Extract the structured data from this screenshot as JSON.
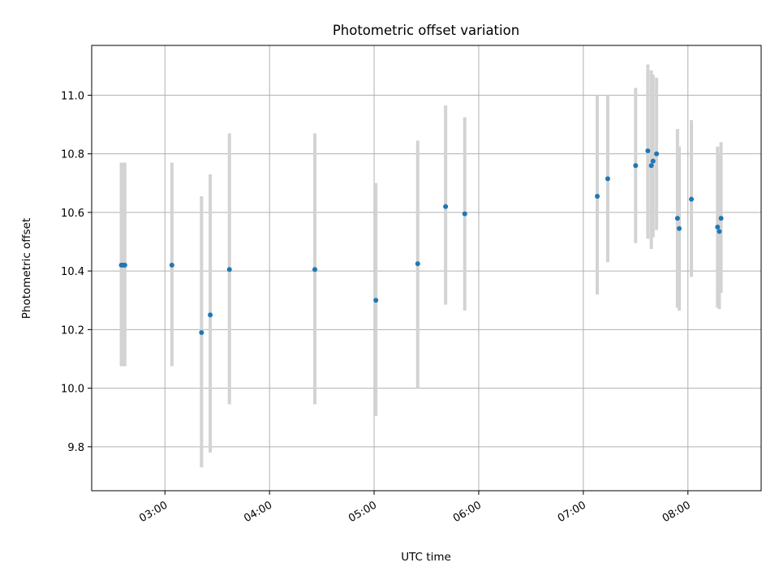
{
  "chart_data": {
    "type": "scatter",
    "title": "Photometric offset variation",
    "xlabel": "UTC time",
    "ylabel": "Photometric offset",
    "x_unit": "UTC time of day",
    "xlim": [
      "02:18",
      "08:42"
    ],
    "ylim": [
      9.65,
      11.17
    ],
    "grid": true,
    "legend": "none",
    "x_ticks": [
      "03:00",
      "04:00",
      "05:00",
      "06:00",
      "07:00",
      "08:00"
    ],
    "y_ticks": [
      9.8,
      10.0,
      10.2,
      10.4,
      10.6,
      10.8,
      11.0
    ],
    "y_tick_labels": [
      "9.8",
      "10.0",
      "10.2",
      "10.4",
      "10.6",
      "10.8",
      "11.0"
    ],
    "colors": {
      "point": "#1f77b4",
      "errorbar": "#d3d3d3",
      "grid": "#b0b0b0",
      "axes": "#000000"
    },
    "series": [
      {
        "points": [
          {
            "x": "02:35",
            "y": 10.42,
            "ylo": 10.075,
            "yhi": 10.77
          },
          {
            "x": "02:36",
            "y": 10.42,
            "ylo": 10.075,
            "yhi": 10.77
          },
          {
            "x": "02:37",
            "y": 10.42,
            "ylo": 10.075,
            "yhi": 10.77
          },
          {
            "x": "03:04",
            "y": 10.42,
            "ylo": 10.075,
            "yhi": 10.77
          },
          {
            "x": "03:21",
            "y": 10.19,
            "ylo": 9.73,
            "yhi": 10.655
          },
          {
            "x": "03:26",
            "y": 10.25,
            "ylo": 9.78,
            "yhi": 10.73
          },
          {
            "x": "03:37",
            "y": 10.405,
            "ylo": 9.945,
            "yhi": 10.87
          },
          {
            "x": "04:26",
            "y": 10.405,
            "ylo": 9.945,
            "yhi": 10.87
          },
          {
            "x": "05:01",
            "y": 10.3,
            "ylo": 9.905,
            "yhi": 10.7
          },
          {
            "x": "05:25",
            "y": 10.425,
            "ylo": 10.0,
            "yhi": 10.845
          },
          {
            "x": "05:41",
            "y": 10.62,
            "ylo": 10.285,
            "yhi": 10.965
          },
          {
            "x": "05:52",
            "y": 10.595,
            "ylo": 10.265,
            "yhi": 10.925
          },
          {
            "x": "07:08",
            "y": 10.655,
            "ylo": 10.32,
            "yhi": 11.0
          },
          {
            "x": "07:14",
            "y": 10.715,
            "ylo": 10.43,
            "yhi": 11.0
          },
          {
            "x": "07:30",
            "y": 10.76,
            "ylo": 10.495,
            "yhi": 11.025
          },
          {
            "x": "07:37",
            "y": 10.81,
            "ylo": 10.51,
            "yhi": 11.105
          },
          {
            "x": "07:39",
            "y": 10.76,
            "ylo": 10.475,
            "yhi": 11.085
          },
          {
            "x": "07:40",
            "y": 10.775,
            "ylo": 10.515,
            "yhi": 11.07
          },
          {
            "x": "07:42",
            "y": 10.8,
            "ylo": 10.54,
            "yhi": 11.06
          },
          {
            "x": "07:54",
            "y": 10.58,
            "ylo": 10.275,
            "yhi": 10.885
          },
          {
            "x": "07:55",
            "y": 10.545,
            "ylo": 10.265,
            "yhi": 10.825
          },
          {
            "x": "08:02",
            "y": 10.645,
            "ylo": 10.38,
            "yhi": 10.915
          },
          {
            "x": "08:17",
            "y": 10.55,
            "ylo": 10.275,
            "yhi": 10.825
          },
          {
            "x": "08:18",
            "y": 10.535,
            "ylo": 10.27,
            "yhi": 10.8
          },
          {
            "x": "08:19",
            "y": 10.58,
            "ylo": 10.325,
            "yhi": 10.84
          }
        ]
      }
    ]
  }
}
